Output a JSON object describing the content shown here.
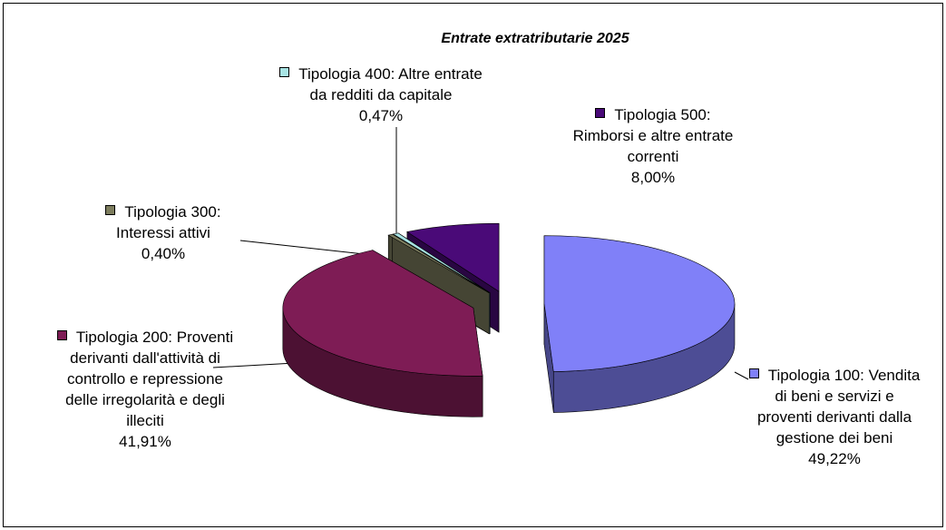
{
  "chart_data": {
    "type": "pie3d",
    "title": "Entrate extratributarie 2025",
    "categories": [
      "Tipologia 100: Vendita di beni e servizi e proventi derivanti dalla gestione dei beni",
      "Tipologia 200: Proventi derivanti dall'attività di controllo e repressione delle irregolarità e degli illeciti",
      "Tipologia 300: Interessi attivi",
      "Tipologia 400: Altre entrate da redditi da capitale",
      "Tipologia 500: Rimborsi e altre entrate correnti"
    ],
    "values": [
      49.22,
      41.91,
      0.4,
      0.47,
      8.0
    ],
    "value_labels": [
      "49,22%",
      "41,91%",
      "0,40%",
      "0,47%",
      "8,00%"
    ],
    "colors": [
      "#8080f8",
      "#7e1c55",
      "#7d7d5e",
      "#a8e4e4",
      "#4a0a78"
    ]
  }
}
